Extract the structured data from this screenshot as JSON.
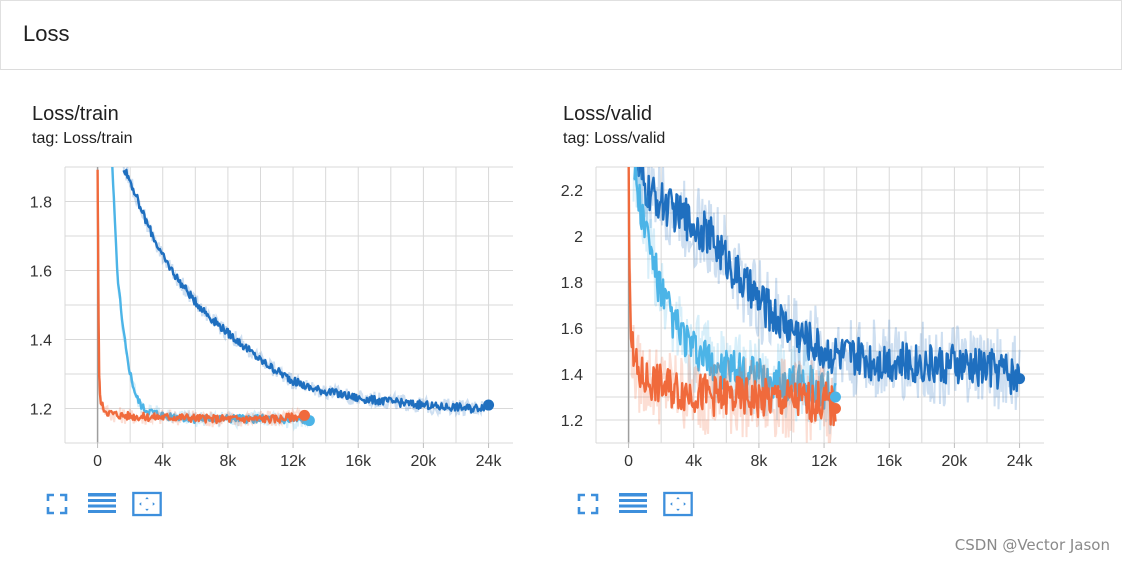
{
  "section": {
    "title": "Loss"
  },
  "cards": [
    {
      "title": "Loss/train",
      "tag": "tag: Loss/train"
    },
    {
      "title": "Loss/valid",
      "tag": "tag: Loss/valid"
    }
  ],
  "toolbar": {
    "icons": [
      "fullscreen-icon",
      "data-table-icon",
      "fit-domain-icon"
    ]
  },
  "watermark": "CSDN @Vector Jason",
  "colors": {
    "dark_blue": "#1f6fbf",
    "light_blue": "#4cb4e7",
    "orange": "#f06a3c",
    "grid": "#d6d6d6"
  },
  "chart_data": [
    {
      "type": "line",
      "title": "Loss/train",
      "xlim": [
        -2000,
        25500
      ],
      "ylim": [
        1.1,
        1.9
      ],
      "x_ticks": [
        0,
        4000,
        8000,
        12000,
        16000,
        20000,
        24000
      ],
      "x_tick_labels": [
        "0",
        "4k",
        "8k",
        "12k",
        "16k",
        "20k",
        "24k"
      ],
      "y_ticks": [
        1.2,
        1.4,
        1.6,
        1.8
      ],
      "y_tick_labels": [
        "1.2",
        "1.4",
        "1.6",
        "1.8"
      ],
      "grid": true,
      "series": [
        {
          "color": "#1f6fbf",
          "x": [
            1600,
            2000,
            2500,
            3000,
            4000,
            5000,
            6000,
            7000,
            8000,
            9000,
            10000,
            11000,
            12000,
            13000,
            14000,
            15000,
            16000,
            17000,
            18000,
            19000,
            20000,
            21000,
            22000,
            23000,
            24000
          ],
          "y": [
            1.9,
            1.86,
            1.8,
            1.74,
            1.64,
            1.57,
            1.51,
            1.46,
            1.42,
            1.38,
            1.34,
            1.31,
            1.28,
            1.26,
            1.25,
            1.24,
            1.23,
            1.225,
            1.22,
            1.215,
            1.21,
            1.205,
            1.205,
            1.2,
            1.21
          ]
        },
        {
          "color": "#4cb4e7",
          "x": [
            900,
            1000,
            1200,
            1500,
            1800,
            2100,
            2400,
            2800,
            3200,
            4000,
            5000,
            6000,
            8000,
            10000,
            12000,
            13000
          ],
          "y": [
            1.9,
            1.8,
            1.6,
            1.45,
            1.35,
            1.28,
            1.23,
            1.2,
            1.19,
            1.18,
            1.175,
            1.17,
            1.17,
            1.17,
            1.165,
            1.165
          ]
        },
        {
          "color": "#f06a3c",
          "x": [
            0,
            30,
            60,
            100,
            150,
            250,
            400,
            600,
            900,
            1500,
            3000,
            5000,
            7000,
            9000,
            11000,
            12700
          ],
          "y": [
            1.9,
            1.7,
            1.45,
            1.3,
            1.24,
            1.21,
            1.2,
            1.19,
            1.185,
            1.18,
            1.175,
            1.175,
            1.17,
            1.17,
            1.17,
            1.18
          ]
        }
      ]
    },
    {
      "type": "line",
      "title": "Loss/valid",
      "xlim": [
        -2000,
        25500
      ],
      "ylim": [
        1.1,
        2.3
      ],
      "x_ticks": [
        0,
        4000,
        8000,
        12000,
        16000,
        20000,
        24000
      ],
      "x_tick_labels": [
        "0",
        "4k",
        "8k",
        "12k",
        "16k",
        "20k",
        "24k"
      ],
      "y_ticks": [
        1.2,
        1.4,
        1.6,
        1.8,
        2.0,
        2.2
      ],
      "y_tick_labels": [
        "1.2",
        "1.4",
        "1.6",
        "1.8",
        "2",
        "2.2"
      ],
      "grid": true,
      "series": [
        {
          "color": "#1f6fbf",
          "x": [
            500,
            1000,
            2000,
            3000,
            4000,
            5000,
            6000,
            7000,
            8000,
            9000,
            10000,
            11000,
            12000,
            13000,
            14000,
            15000,
            16000,
            17000,
            18000,
            19000,
            20000,
            21000,
            22000,
            23000,
            24000
          ],
          "y": [
            2.3,
            2.2,
            2.15,
            2.1,
            2.05,
            2.0,
            1.9,
            1.8,
            1.72,
            1.65,
            1.6,
            1.55,
            1.5,
            1.48,
            1.47,
            1.46,
            1.46,
            1.45,
            1.45,
            1.44,
            1.44,
            1.43,
            1.43,
            1.42,
            1.38
          ]
        },
        {
          "color": "#4cb4e7",
          "x": [
            300,
            800,
            1500,
            2000,
            3000,
            4000,
            5000,
            6000,
            7000,
            8000,
            9000,
            10000,
            11000,
            12000,
            12700
          ],
          "y": [
            2.3,
            2.1,
            1.9,
            1.75,
            1.6,
            1.5,
            1.45,
            1.42,
            1.4,
            1.38,
            1.37,
            1.36,
            1.35,
            1.33,
            1.3
          ]
        },
        {
          "color": "#f06a3c",
          "x": [
            0,
            60,
            150,
            300,
            600,
            1000,
            2000,
            3000,
            4000,
            5000,
            6000,
            7000,
            8000,
            9000,
            10000,
            11000,
            12000,
            12700
          ],
          "y": [
            2.3,
            1.9,
            1.6,
            1.45,
            1.4,
            1.38,
            1.35,
            1.33,
            1.32,
            1.31,
            1.3,
            1.3,
            1.29,
            1.29,
            1.29,
            1.28,
            1.28,
            1.25
          ]
        }
      ]
    }
  ]
}
